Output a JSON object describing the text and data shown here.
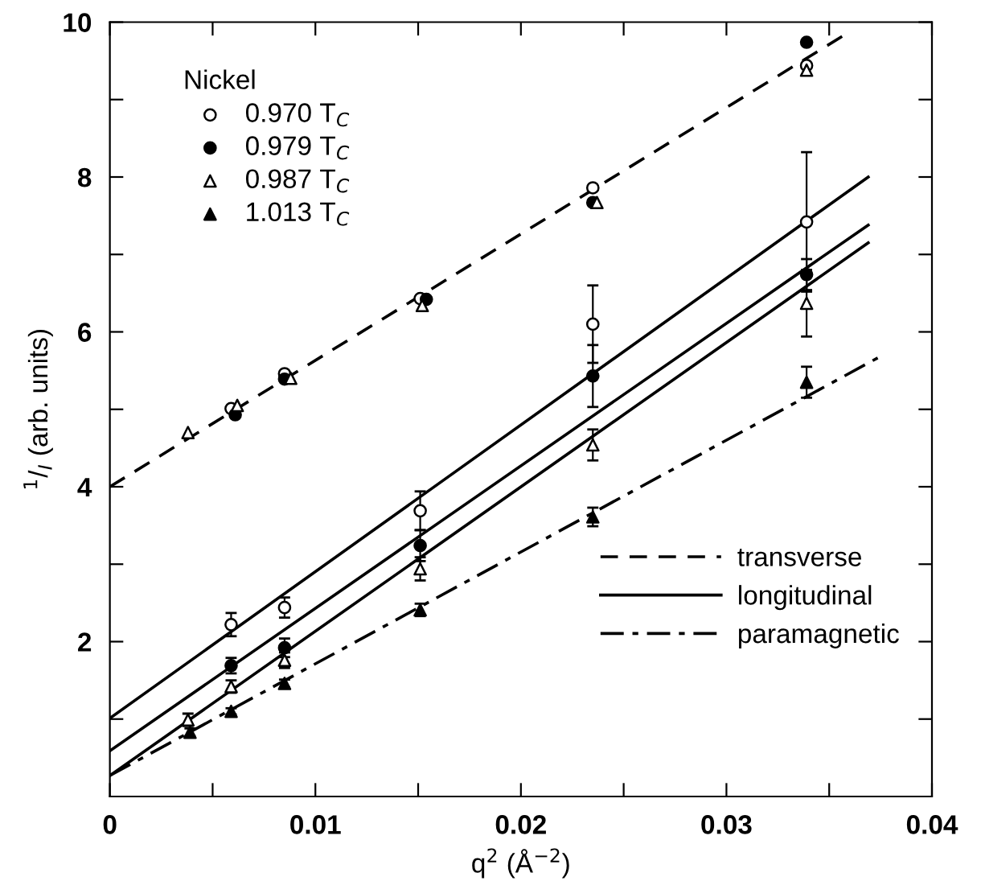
{
  "chart_data": {
    "type": "scatter",
    "xlabel": "q$^{2}$ (Å$^{−2}$)",
    "ylabel": "$^{1}$/$_{I}$ (arb. units)",
    "legend_title": "Nickel",
    "legend": "top left",
    "grid": false,
    "xlim": [
      0,
      0.04
    ],
    "ylim": [
      0,
      10
    ],
    "xticks": [
      0,
      {
        "value": 0.005,
        "label": null
      },
      0.01,
      {
        "value": 0.015,
        "label": null
      },
      0.02,
      {
        "value": 0.025,
        "label": null
      },
      0.03,
      {
        "value": 0.035,
        "label": null
      },
      0.04
    ],
    "yticks": [
      {
        "value": 1,
        "label": null
      },
      2,
      {
        "value": 3,
        "label": null
      },
      4,
      {
        "value": 5,
        "label": null
      },
      6,
      {
        "value": 7,
        "label": null
      },
      8,
      {
        "value": 9,
        "label": null
      },
      10
    ],
    "series": [
      {
        "name": "0.970 T$_{C}$",
        "marker": "circle",
        "color": "#ffffff",
        "x": [
          0.0059,
          0.0085,
          0.0151,
          0.0235,
          0.0339,
          0.0059,
          0.0085,
          0.0151,
          0.0235,
          0.0339
        ],
        "values": [
          5.01,
          5.46,
          6.43,
          7.86,
          9.44,
          2.22,
          2.44,
          3.69,
          6.1,
          7.42
        ],
        "errors": [
          null,
          null,
          null,
          null,
          null,
          0.15,
          0.13,
          0.25,
          0.5,
          0.9
        ]
      },
      {
        "name": "0.979 T$_{C}$",
        "marker": "circle",
        "color": "#000000",
        "x": [
          0.0061,
          0.0085,
          0.0154,
          0.0235,
          0.0339,
          0.0059,
          0.0085,
          0.0151,
          0.0235,
          0.0339
        ],
        "values": [
          4.93,
          5.39,
          6.42,
          7.67,
          9.74,
          1.69,
          1.92,
          3.24,
          5.43,
          6.74
        ],
        "errors": [
          null,
          null,
          null,
          null,
          null,
          0.1,
          0.12,
          0.2,
          0.4,
          0.2
        ]
      },
      {
        "name": "0.987 T$_{C}$",
        "marker": "triangle",
        "color": "#ffffff",
        "x": [
          0.0038,
          0.0062,
          0.0088,
          0.0152,
          0.0237,
          0.0339,
          0.0038,
          0.0059,
          0.0085,
          0.0151,
          0.0235,
          0.0339
        ],
        "values": [
          4.7,
          5.05,
          5.4,
          6.34,
          7.67,
          9.38,
          0.99,
          1.42,
          1.76,
          2.94,
          4.54,
          6.37
        ],
        "errors": [
          null,
          null,
          null,
          null,
          null,
          null,
          0.08,
          0.08,
          0.1,
          0.15,
          0.2,
          0.43
        ]
      },
      {
        "name": "1.013 T$_{C}$",
        "marker": "triangle",
        "color": "#000000",
        "x": [
          0.0039,
          0.0059,
          0.0085,
          0.0151,
          0.0235,
          0.0339
        ],
        "values": [
          0.83,
          1.1,
          1.46,
          2.41,
          3.61,
          5.35
        ],
        "errors": [
          0.05,
          0.04,
          0.05,
          0.08,
          0.12,
          0.2
        ]
      },
      {
        "name": "transverse",
        "type": "line",
        "line_style": "dashed",
        "color": "#000000",
        "x": [
          0,
          0.0359
        ],
        "values": [
          4.0,
          9.86
        ]
      },
      {
        "name": "longitudinal",
        "type": "line",
        "line_style": "solid",
        "color": "#000000",
        "x": [
          0,
          0.0369
        ],
        "values": [
          1.01,
          8.0
        ]
      },
      {
        "type": "line",
        "line_style": "solid",
        "color": "#000000",
        "x": [
          0,
          0.0369
        ],
        "values": [
          0.59,
          7.38
        ]
      },
      {
        "type": "line",
        "line_style": "solid",
        "color": "#000000",
        "x": [
          0,
          0.0369
        ],
        "values": [
          0.27,
          7.15
        ]
      },
      {
        "name": "paramagnetic",
        "type": "line",
        "line_style": "dashdot",
        "color": "#000000",
        "x": [
          0,
          0.0374
        ],
        "values": [
          0.27,
          5.67
        ]
      }
    ]
  }
}
